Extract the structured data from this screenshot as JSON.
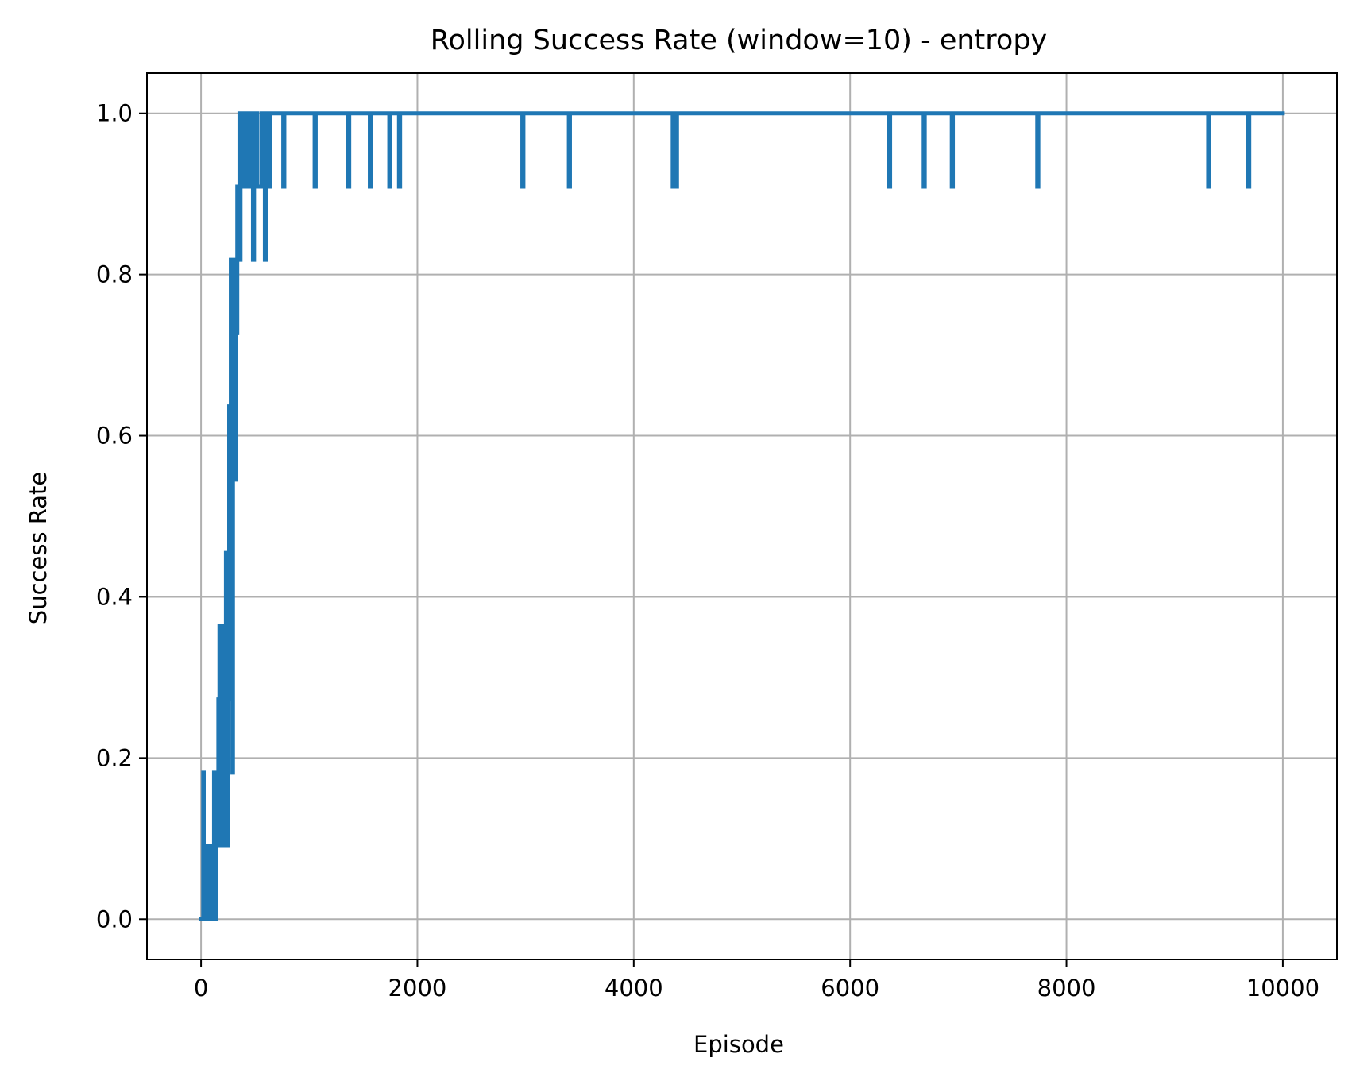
{
  "chart_data": {
    "type": "line",
    "title": "Rolling Success Rate (window=10) - entropy",
    "xlabel": "Episode",
    "ylabel": "Success Rate",
    "xlim": [
      -500,
      10500
    ],
    "ylim": [
      -0.05,
      1.05
    ],
    "xticks": [
      0,
      2000,
      4000,
      6000,
      8000,
      10000
    ],
    "xtick_labels": [
      "0",
      "2000",
      "4000",
      "6000",
      "8000",
      "10000"
    ],
    "yticks": [
      0.0,
      0.2,
      0.4,
      0.6,
      0.8,
      1.0
    ],
    "ytick_labels": [
      "0.0",
      "0.2",
      "0.4",
      "0.6",
      "0.8",
      "1.0"
    ],
    "grid": true,
    "legend": "none",
    "colors": {
      "line": "#1f77b4",
      "grid": "#b0b0b0",
      "axes": "#000000"
    },
    "series": [
      {
        "x": [
          0,
          20,
          20,
          25,
          25,
          30,
          30,
          40,
          40,
          60,
          60,
          80,
          80,
          100,
          100,
          110,
          110,
          120,
          120,
          130,
          130,
          140,
          140,
          150,
          150,
          160,
          160,
          170,
          170,
          180,
          180,
          190,
          190,
          200,
          200,
          210,
          210,
          220,
          220,
          230,
          230,
          240,
          240,
          250,
          250,
          255,
          255,
          260,
          260,
          265,
          265,
          270,
          270,
          275,
          275,
          280,
          280,
          285,
          285,
          290,
          290,
          295,
          295,
          300,
          300,
          305,
          305,
          310,
          310,
          315,
          315,
          320,
          320,
          325,
          325,
          330,
          330,
          335,
          335,
          340,
          340,
          345,
          345,
          350,
          350,
          355,
          355,
          360,
          360,
          365,
          365,
          370,
          370,
          375,
          375,
          380,
          380,
          385,
          385,
          390,
          390,
          395,
          395,
          400,
          400,
          410,
          410,
          420,
          420,
          430,
          430,
          440,
          440,
          450,
          450,
          460,
          460,
          470,
          470,
          480,
          480,
          490,
          490,
          500,
          500,
          510,
          510,
          520,
          520,
          560,
          560,
          570,
          570,
          580,
          580,
          590,
          590,
          600,
          600,
          610,
          610,
          620,
          620,
          630,
          630,
          640,
          640,
          760,
          760,
          770,
          770,
          1050,
          1050,
          1060,
          1060,
          1360,
          1360,
          1370,
          1370,
          1560,
          1560,
          1570,
          1570,
          1740,
          1740,
          1750,
          1750,
          1830,
          1830,
          1840,
          1840,
          2970,
          2970,
          2980,
          2980,
          3400,
          3400,
          3410,
          3410,
          4360,
          4360,
          4370,
          4370,
          4390,
          4390,
          4400,
          4400,
          6360,
          6360,
          6370,
          6370,
          6680,
          6680,
          6690,
          6690,
          6940,
          6940,
          6950,
          6950,
          7730,
          7730,
          7740,
          7740,
          9310,
          9310,
          9320,
          9320,
          9680,
          9680,
          9690,
          9690,
          10000
        ],
        "y": [
          0.0,
          0.0,
          0.1818,
          0.1818,
          0.0,
          0.0,
          0.0909,
          0.0909,
          0.0,
          0.0,
          0.0909,
          0.0909,
          0.0,
          0.0,
          0.0909,
          0.0909,
          0.0,
          0.0,
          0.1818,
          0.1818,
          0.0,
          0.0,
          0.1818,
          0.1818,
          0.0909,
          0.0909,
          0.2727,
          0.2727,
          0.3636,
          0.3636,
          0.0909,
          0.0909,
          0.3636,
          0.3636,
          0.0909,
          0.0909,
          0.3636,
          0.3636,
          0.2727,
          0.2727,
          0.4545,
          0.4545,
          0.0909,
          0.0909,
          0.4545,
          0.4545,
          0.2727,
          0.2727,
          0.6364,
          0.6364,
          0.3636,
          0.3636,
          0.5455,
          0.5455,
          0.8182,
          0.8182,
          0.3636,
          0.3636,
          0.8182,
          0.8182,
          0.1818,
          0.1818,
          0.7273,
          0.7273,
          0.5455,
          0.5455,
          0.8182,
          0.8182,
          0.5455,
          0.5455,
          0.6364,
          0.6364,
          0.5455,
          0.5455,
          0.8182,
          0.8182,
          0.7273,
          0.7273,
          0.9091,
          0.9091,
          0.8182,
          0.8182,
          0.9091,
          0.9091,
          0.8182,
          0.8182,
          1.0,
          1.0,
          0.8182,
          0.8182,
          1.0,
          1.0,
          0.9091,
          0.9091,
          1.0,
          1.0,
          0.9091,
          0.9091,
          1.0,
          1.0,
          0.9091,
          0.9091,
          1.0,
          1.0,
          0.9091,
          0.9091,
          1.0,
          1.0,
          0.9091,
          0.9091,
          1.0,
          1.0,
          0.9091,
          0.9091,
          1.0,
          1.0,
          0.9091,
          0.9091,
          1.0,
          1.0,
          0.8182,
          0.8182,
          1.0,
          1.0,
          0.9091,
          0.9091,
          1.0,
          1.0,
          0.9091,
          0.9091,
          1.0,
          1.0,
          0.9091,
          0.9091,
          1.0,
          1.0,
          0.8182,
          0.8182,
          1.0,
          1.0,
          0.9091,
          0.9091,
          1.0,
          1.0,
          0.9091,
          0.9091,
          1.0,
          1.0,
          0.9091,
          0.9091,
          1.0,
          1.0,
          0.9091,
          0.9091,
          1.0,
          1.0,
          0.9091,
          0.9091,
          1.0,
          1.0,
          0.9091,
          0.9091,
          1.0,
          1.0,
          0.9091,
          0.9091,
          1.0,
          1.0,
          0.9091,
          0.9091,
          1.0,
          1.0,
          0.9091,
          0.9091,
          1.0,
          1.0,
          0.9091,
          0.9091,
          1.0,
          1.0,
          0.9091,
          0.9091,
          1.0,
          1.0,
          0.9091,
          0.9091,
          1.0,
          1.0,
          0.9091,
          0.9091,
          1.0,
          1.0,
          0.9091,
          0.9091,
          1.0,
          1.0,
          0.9091,
          0.9091,
          1.0,
          1.0,
          0.9091,
          0.9091,
          1.0,
          1.0,
          0.9091,
          0.9091,
          1.0,
          1.0,
          0.9091,
          0.9091,
          1.0,
          1.0
        ]
      }
    ]
  }
}
